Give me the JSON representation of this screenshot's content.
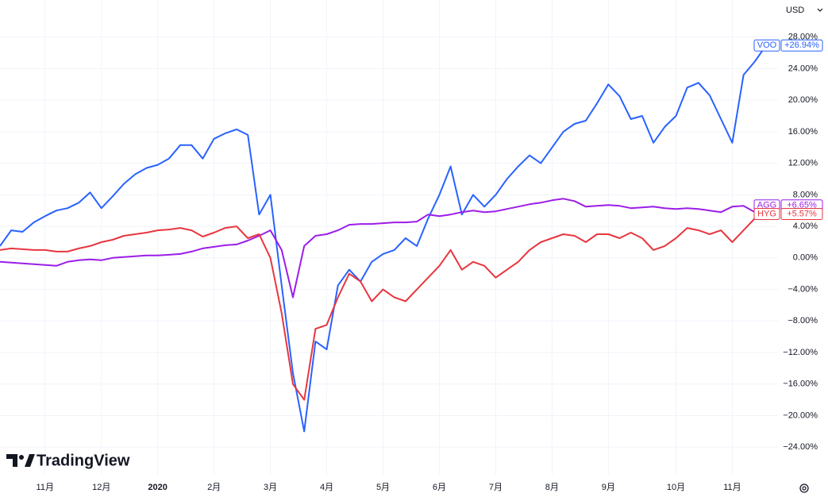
{
  "currency": "USD",
  "brand": "TradingView",
  "chart_data": {
    "type": "line",
    "categories": [
      null,
      null,
      null,
      null,
      "11月",
      null,
      null,
      null,
      null,
      "12月",
      null,
      null,
      null,
      null,
      "2020",
      null,
      null,
      null,
      null,
      "2月",
      null,
      null,
      null,
      null,
      "3月",
      null,
      null,
      null,
      null,
      "4月",
      null,
      null,
      null,
      null,
      "5月",
      null,
      null,
      null,
      null,
      "6月",
      null,
      null,
      null,
      null,
      "7月",
      null,
      null,
      null,
      null,
      "8月",
      null,
      null,
      null,
      null,
      "9月",
      null,
      null,
      null,
      null,
      null,
      "10月",
      null,
      null,
      null,
      null,
      "11月",
      null,
      null,
      null
    ],
    "series": [
      {
        "name": "VOO",
        "color": "#2962ff",
        "values": [
          1.5,
          3.5,
          3.3,
          4.5,
          5.3,
          6,
          6.3,
          7,
          8.3,
          6.3,
          7.8,
          9.4,
          10.6,
          11.4,
          11.8,
          12.6,
          14.3,
          14.3,
          12.6,
          15.1,
          15.8,
          16.3,
          15.6,
          5.5,
          8,
          -3.5,
          -14.6,
          -22,
          -10.6,
          -11.6,
          -3.5,
          -1.5,
          -3,
          -0.5,
          0.5,
          1,
          2.5,
          1.5,
          5,
          8,
          11.6,
          5.5,
          8,
          6.5,
          8,
          10,
          11.6,
          13,
          12,
          14,
          16,
          17,
          17.4,
          19.6,
          22,
          20.5,
          17.6,
          18,
          14.6,
          16.6,
          18,
          21.6,
          22.2,
          20.6,
          17.6,
          14.6,
          23.2,
          24.9,
          26.94
        ],
        "value_labels": [
          null,
          null,
          null,
          null,
          null,
          null,
          null,
          null,
          null,
          null,
          null,
          null,
          null,
          null,
          null,
          null,
          null,
          null,
          null,
          null,
          null,
          null,
          null,
          null,
          null,
          null,
          null,
          null,
          null,
          null,
          null,
          null,
          null,
          null,
          null,
          null,
          null,
          null,
          null,
          null,
          null,
          null,
          null,
          null,
          null,
          null,
          null,
          null,
          null,
          null,
          null,
          null,
          null,
          null,
          null,
          null,
          null,
          null,
          null,
          null,
          null,
          null,
          null,
          null,
          null,
          null,
          null,
          null,
          "+26.94%"
        ]
      },
      {
        "name": "AGG",
        "color": "#9c1de8",
        "values": [
          -0.5,
          -0.6,
          -0.7,
          -0.8,
          -0.9,
          -1.0,
          -0.5,
          -0.3,
          -0.2,
          -0.3,
          0,
          0.1,
          0.2,
          0.3,
          0.3,
          0.4,
          0.5,
          0.8,
          1.2,
          1.4,
          1.6,
          1.7,
          2.2,
          2.8,
          3.5,
          1,
          -5,
          1.5,
          2.8,
          3,
          3.5,
          4.2,
          4.3,
          4.3,
          4.4,
          4.5,
          4.5,
          4.6,
          5.5,
          5.3,
          5.5,
          5.8,
          6,
          5.8,
          5.9,
          6.2,
          6.5,
          6.8,
          7,
          7.3,
          7.5,
          7.2,
          6.5,
          6.6,
          6.7,
          6.6,
          6.3,
          6.4,
          6.5,
          6.3,
          6.2,
          6.3,
          6.2,
          6.0,
          5.8,
          6.5,
          6.6,
          5.8,
          6.65
        ],
        "value_labels": [
          null,
          null,
          null,
          null,
          null,
          null,
          null,
          null,
          null,
          null,
          null,
          null,
          null,
          null,
          null,
          null,
          null,
          null,
          null,
          null,
          null,
          null,
          null,
          null,
          null,
          null,
          null,
          null,
          null,
          null,
          null,
          null,
          null,
          null,
          null,
          null,
          null,
          null,
          null,
          null,
          null,
          null,
          null,
          null,
          null,
          null,
          null,
          null,
          null,
          null,
          null,
          null,
          null,
          null,
          null,
          null,
          null,
          null,
          null,
          null,
          null,
          null,
          null,
          null,
          null,
          null,
          null,
          null,
          "+6.65%"
        ]
      },
      {
        "name": "HYG",
        "color": "#e8363f",
        "values": [
          1.0,
          1.2,
          1.1,
          1.0,
          1.0,
          0.8,
          0.8,
          1.2,
          1.5,
          2.0,
          2.3,
          2.8,
          3.0,
          3.2,
          3.5,
          3.6,
          3.8,
          3.5,
          2.7,
          3.2,
          3.8,
          4.0,
          2.5,
          3.0,
          0,
          -7,
          -16,
          -18,
          -9,
          -8.5,
          -5,
          -2,
          -3,
          -5.5,
          -4,
          -5,
          -5.5,
          -4,
          -2.5,
          -1,
          1,
          -1.5,
          -0.5,
          -1,
          -2.5,
          -1.5,
          -0.5,
          1,
          2,
          2.5,
          3,
          2.8,
          2,
          3,
          3,
          2.5,
          3.2,
          2.5,
          1,
          1.5,
          2.5,
          3.8,
          3.5,
          3,
          3.5,
          2,
          3.5,
          5,
          5.57
        ],
        "value_labels": [
          null,
          null,
          null,
          null,
          null,
          null,
          null,
          null,
          null,
          null,
          null,
          null,
          null,
          null,
          null,
          null,
          null,
          null,
          null,
          null,
          null,
          null,
          null,
          null,
          null,
          null,
          null,
          null,
          null,
          null,
          null,
          null,
          null,
          null,
          null,
          null,
          null,
          null,
          null,
          null,
          null,
          null,
          null,
          null,
          null,
          null,
          null,
          null,
          null,
          null,
          null,
          null,
          null,
          null,
          null,
          null,
          null,
          null,
          null,
          null,
          null,
          null,
          null,
          null,
          null,
          null,
          null,
          null,
          "+5.57%"
        ]
      }
    ],
    "ylim": [
      -27.5,
      32.7
    ],
    "yticks": [
      {
        "value": 28,
        "label": "28.00%"
      },
      {
        "value": 24,
        "label": "24.00%"
      },
      {
        "value": 20,
        "label": "20.00%"
      },
      {
        "value": 16,
        "label": "16.00%"
      },
      {
        "value": 12,
        "label": "12.00%"
      },
      {
        "value": 8,
        "label": "8.00%"
      },
      {
        "value": 4,
        "label": "4.00%"
      },
      {
        "value": 0,
        "label": "0.00%"
      },
      {
        "value": -4,
        "label": "−4.00%"
      },
      {
        "value": -8,
        "label": "−8.00%"
      },
      {
        "value": -12,
        "label": "−12.00%"
      },
      {
        "value": -16,
        "label": "−16.00%"
      },
      {
        "value": -20,
        "label": "−20.00%"
      },
      {
        "value": -24,
        "label": "−24.00%"
      }
    ],
    "grid": true
  }
}
